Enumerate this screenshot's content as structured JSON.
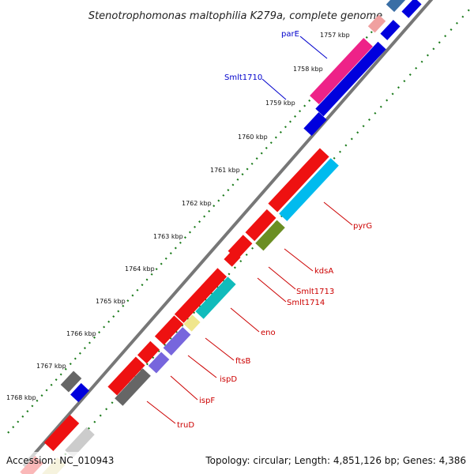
{
  "title": "Stenotrophomonas maltophilia K279a, complete genome",
  "accession": "Accession: NC_010943",
  "topology": "Topology: circular; Length: 4,851,126 bp; Genes: 4,386",
  "ticks": [
    "1757 kbp",
    "1758 kbp",
    "1759 kbp",
    "1760 kbp",
    "1761 kbp",
    "1762 kbp",
    "1763 kbp",
    "1764 kbp",
    "1765 kbp",
    "1766 kbp",
    "1767 kbp",
    "1768 kbp"
  ],
  "labels_left": [
    "parE",
    "Smlt1710"
  ],
  "labels_right": [
    "pyrG",
    "kdsA",
    "Smlt1713",
    "Smlt1714",
    "eno",
    "ftsB",
    "ispD",
    "ispF",
    "truD"
  ],
  "colors": {
    "backbone": "#888888",
    "ticks": "#1a7a1a",
    "label_left": "#0000cc",
    "label_right": "#cc0000",
    "red": "#ee1111",
    "blue": "#0000dd",
    "cyan": "#00bbee",
    "teal": "#11bbbb",
    "magenta": "#ee2288",
    "olive": "#6b8e23",
    "yellow": "#f0e68c",
    "violet": "#7766dd",
    "gray": "#666666"
  }
}
